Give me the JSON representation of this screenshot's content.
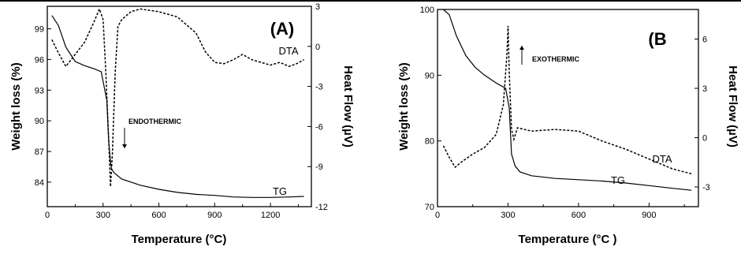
{
  "chart_data": [
    {
      "type": "line",
      "panel_label": "(A)",
      "xlabel": "Temperature (°C)",
      "ylabel": "Weight loss (%)",
      "y2label": "Heat Flow  (µV)",
      "xlim": [
        0,
        1420
      ],
      "ylim": [
        81.6,
        101.2
      ],
      "y2lim": [
        -12,
        3
      ],
      "xticks": [
        0,
        300,
        600,
        900,
        1200
      ],
      "yticks": [
        84,
        87,
        90,
        93,
        96,
        99
      ],
      "y2ticks": [
        -12,
        -9,
        -6,
        -3,
        0,
        3
      ],
      "annotation": "ENDOTHERMIC",
      "series": [
        {
          "name": "TG",
          "axis": "left",
          "x": [
            25,
            60,
            100,
            150,
            200,
            250,
            290,
            320,
            330,
            340,
            345,
            360,
            400,
            500,
            600,
            700,
            800,
            900,
            1000,
            1100,
            1200,
            1300,
            1380
          ],
          "y": [
            100.3,
            99.3,
            97.2,
            95.8,
            95.4,
            95.1,
            94.8,
            92.0,
            88.0,
            86.0,
            85.3,
            84.9,
            84.3,
            83.7,
            83.3,
            83.0,
            82.8,
            82.7,
            82.55,
            82.5,
            82.5,
            82.55,
            82.6
          ]
        },
        {
          "name": "DTA",
          "axis": "right",
          "x": [
            25,
            60,
            100,
            150,
            200,
            250,
            280,
            300,
            315,
            330,
            340,
            350,
            365,
            380,
            400,
            450,
            500,
            600,
            700,
            800,
            850,
            900,
            950,
            1000,
            1050,
            1100,
            1150,
            1200,
            1250,
            1300,
            1340,
            1380
          ],
          "y": [
            0.5,
            -0.5,
            -1.5,
            -0.6,
            0.3,
            1.8,
            2.8,
            2.0,
            -2.0,
            -7.0,
            -10.5,
            -8.0,
            -2.0,
            1.5,
            2.0,
            2.6,
            2.8,
            2.6,
            2.2,
            1.0,
            -0.4,
            -1.2,
            -1.3,
            -1.0,
            -0.6,
            -1.0,
            -1.2,
            -1.4,
            -1.2,
            -1.5,
            -1.3,
            -1.0
          ]
        }
      ]
    },
    {
      "type": "line",
      "panel_label": "(B",
      "xlabel": "Temperature (°C )",
      "ylabel": "Weight loss (%)",
      "y2label": "Heat Flow (µV)",
      "xlim": [
        0,
        1110
      ],
      "ylim": [
        70,
        100
      ],
      "y2lim": [
        -4.2,
        7.8
      ],
      "xticks": [
        0,
        300,
        600,
        900
      ],
      "yticks": [
        70,
        80,
        90,
        100
      ],
      "y2ticks": [
        -3,
        0,
        3,
        6
      ],
      "annotation": "EXOTHERMIC",
      "series": [
        {
          "name": "TG",
          "axis": "left",
          "x": [
            25,
            50,
            80,
            120,
            160,
            200,
            250,
            290,
            305,
            315,
            330,
            350,
            400,
            500,
            600,
            700,
            800,
            900,
            1000,
            1080
          ],
          "y": [
            100,
            99.2,
            96,
            93,
            91.2,
            90,
            88.8,
            88,
            85,
            78,
            76.2,
            75.3,
            74.7,
            74.3,
            74.1,
            73.9,
            73.6,
            73.2,
            72.8,
            72.5
          ]
        },
        {
          "name": "DTA",
          "axis": "right",
          "x": [
            25,
            50,
            75,
            100,
            150,
            200,
            250,
            280,
            295,
            300,
            305,
            315,
            325,
            340,
            400,
            500,
            600,
            700,
            800,
            900,
            1000,
            1080
          ],
          "y": [
            -0.5,
            -1.2,
            -1.8,
            -1.5,
            -1.0,
            -0.6,
            0.2,
            2.0,
            5.0,
            6.8,
            4.0,
            0.5,
            -0.1,
            0.6,
            0.4,
            0.5,
            0.4,
            -0.2,
            -0.7,
            -1.3,
            -1.9,
            -2.2
          ]
        }
      ]
    }
  ]
}
